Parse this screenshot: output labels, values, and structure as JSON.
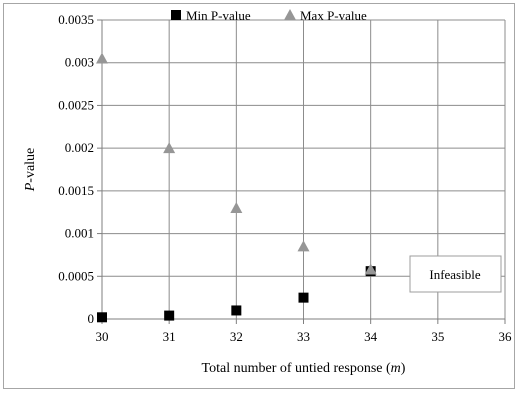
{
  "chart_data": {
    "type": "scatter",
    "xlabel": "Total number of untied response",
    "xlabel_var": "m",
    "ylabel": "P",
    "ylabel_suffix": "-value",
    "xlim": [
      30,
      36
    ],
    "ylim": [
      0,
      0.0035
    ],
    "x_ticks": [
      30,
      31,
      32,
      33,
      34,
      35,
      36
    ],
    "y_ticks": [
      0,
      0.0005,
      0.001,
      0.0015,
      0.002,
      0.0025,
      0.003,
      0.0035
    ],
    "y_tick_labels": [
      "0",
      "0.0005",
      "0.001",
      "0.0015",
      "0.002",
      "0.0025",
      "0.003",
      "0.0035"
    ],
    "x_gridlines": true,
    "y_gridlines": true,
    "legend_position": "top-center",
    "series": [
      {
        "name": "Min P-value",
        "marker": "square",
        "color": "#000000",
        "x": [
          30,
          31,
          32,
          33,
          34
        ],
        "y": [
          2e-05,
          4e-05,
          0.0001,
          0.00025,
          0.00056
        ]
      },
      {
        "name": "Max P-value",
        "marker": "triangle",
        "color": "#969696",
        "x": [
          30,
          31,
          32,
          33,
          34
        ],
        "y": [
          0.00305,
          0.002,
          0.0013,
          0.00085,
          0.00058
        ]
      }
    ],
    "annotation": "Infeasible"
  }
}
